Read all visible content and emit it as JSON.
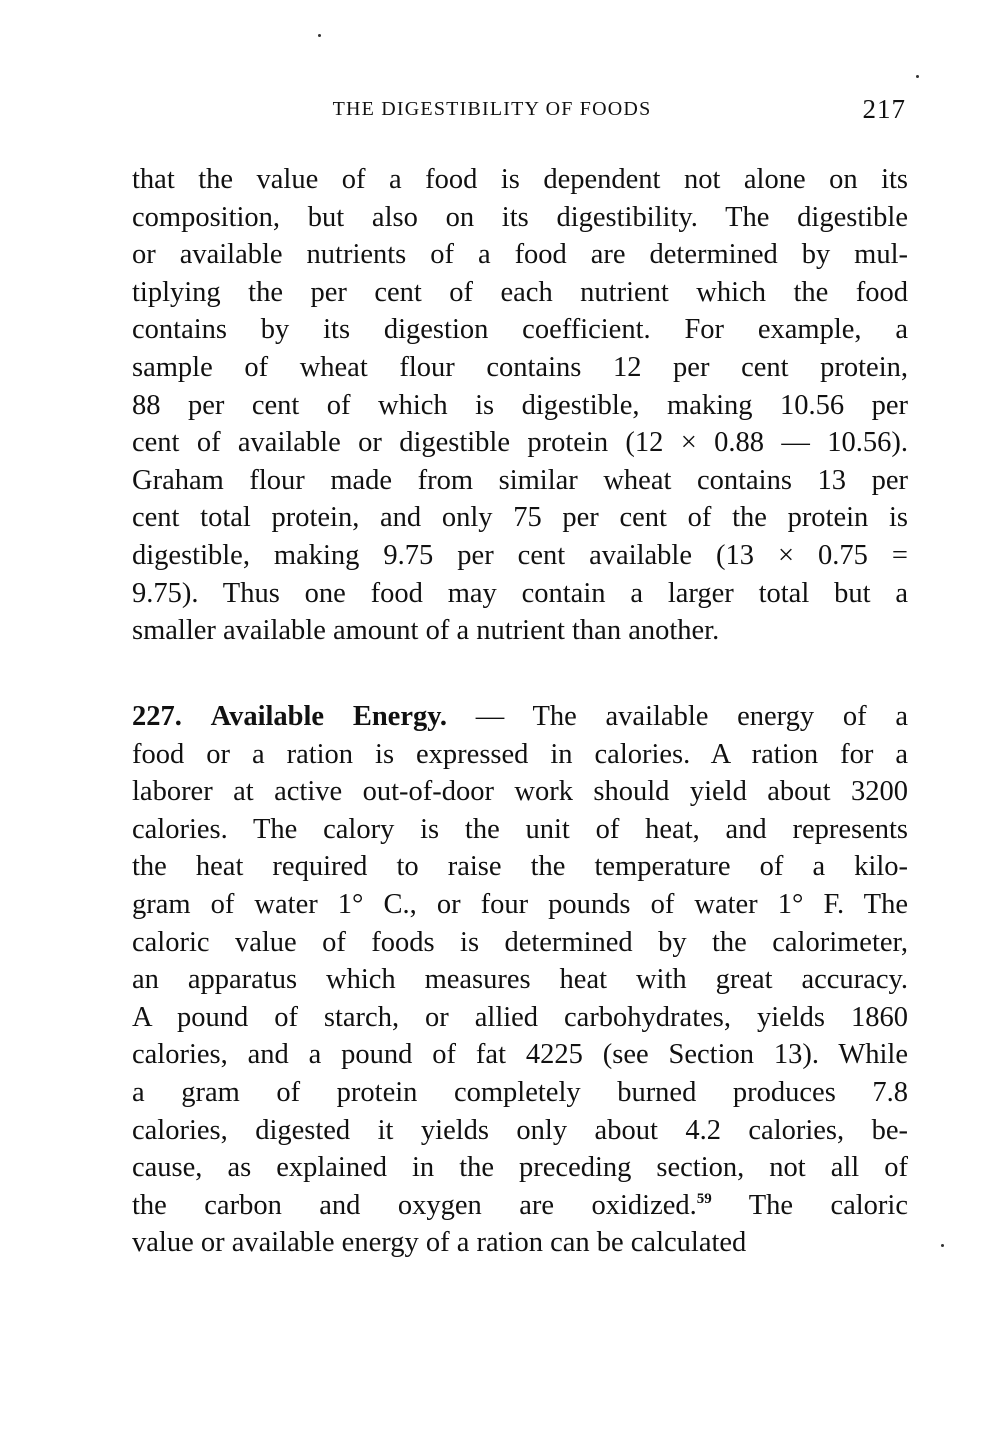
{
  "header": {
    "title": "THE DIGESTIBILITY OF FOODS",
    "page_number": "217"
  },
  "paragraphs": [
    {
      "lines": [
        "that the value of a food is dependent not alone on its",
        "composition, but also on its digestibility. The digestible",
        "or available nutrients of a food are determined by mul-",
        "tiplying the per cent of each nutrient which the food",
        "contains by its digestion coefficient. For example, a",
        "sample of wheat flour contains 12 per cent protein,",
        "88 per cent of which is digestible, making 10.56 per",
        "cent of available or digestible protein (12 × 0.88 — 10.56).",
        "Graham flour made from similar wheat contains 13 per",
        "cent total protein, and only 75 per cent of the protein is",
        "digestible, making 9.75 per cent available (13 × 0.75 =",
        "9.75). Thus one food may contain a larger total but a",
        "smaller available amount of a nutrient than another."
      ]
    },
    {
      "section_number": "227.",
      "section_title": "Available Energy.",
      "first_line_rest": " — The available energy of a",
      "lines": [
        "food or a ration is expressed in calories. A ration for a",
        "laborer at active out-of-door work should yield about 3200",
        "calories. The calory is the unit of heat, and represents",
        "the heat required to raise the temperature of a kilo-",
        "gram of water 1° C., or four pounds of water 1° F. The",
        "caloric value of foods is determined by the calorimeter,",
        "an apparatus which measures heat with great accuracy.",
        "A pound of starch, or allied carbohydrates, yields 1860",
        "calories, and a pound of fat 4225 (see Section 13). While",
        "a gram of protein completely burned produces 7.8",
        "calories, digested it yields only about 4.2 calories, be-",
        "cause, as explained in the preceding section, not all of"
      ],
      "footnote_line_before": "the carbon and oxygen are oxidized.",
      "footnote_ref": "59",
      "footnote_line_after": " The caloric",
      "final_line": "value or available energy of a ration can be calculated"
    }
  ]
}
